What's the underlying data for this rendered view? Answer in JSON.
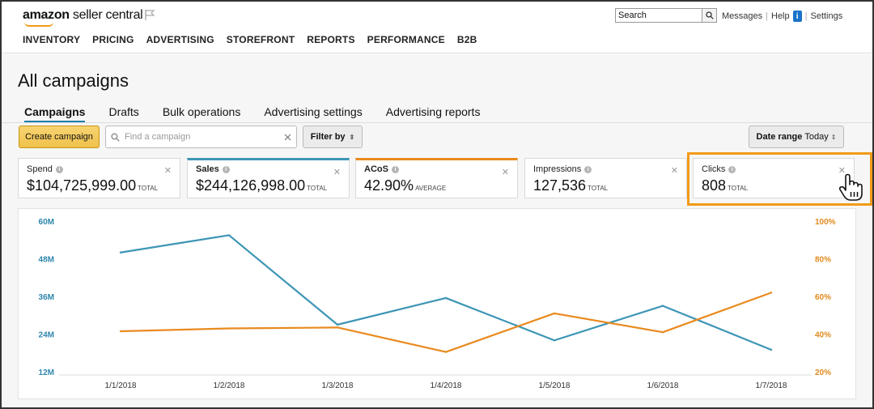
{
  "header": {
    "logo_bold": "amazon",
    "logo_light": " seller central",
    "search_value": "Search",
    "links": {
      "messages": "Messages",
      "help": "Help",
      "settings": "Settings"
    },
    "info_glyph": "i"
  },
  "nav": [
    "INVENTORY",
    "PRICING",
    "ADVERTISING",
    "STOREFRONT",
    "REPORTS",
    "PERFORMANCE",
    "B2B"
  ],
  "page": {
    "title": "All campaigns",
    "tabs": [
      "Campaigns",
      "Drafts",
      "Bulk operations",
      "Advertising settings",
      "Advertising reports"
    ],
    "active_tab": "Campaigns"
  },
  "toolbar": {
    "create_label": "Create campaign",
    "find_placeholder": "Find a campaign",
    "filter_label": "Filter by",
    "date_label": "Date range",
    "date_value": "Today"
  },
  "metrics": [
    {
      "name": "Spend",
      "value": "$104,725,999.00",
      "unit": "TOTAL",
      "accent": ""
    },
    {
      "name": "Sales",
      "value": "$244,126,998.00",
      "unit": "TOTAL",
      "accent": "#3d95b5"
    },
    {
      "name": "ACoS",
      "value": "42.90%",
      "unit": "AVERAGE",
      "accent": "#e98a1f"
    },
    {
      "name": "Impressions",
      "value": "127,536",
      "unit": "TOTAL",
      "accent": ""
    },
    {
      "name": "Clicks",
      "value": "808",
      "unit": "TOTAL",
      "accent": ""
    }
  ],
  "chart_data": {
    "type": "line",
    "x": [
      "1/1/2018",
      "1/2/2018",
      "1/3/2018",
      "1/4/2018",
      "1/5/2018",
      "1/6/2018",
      "1/7/2018"
    ],
    "series": [
      {
        "name": "Sales",
        "axis": "left",
        "color": "#3d95b5",
        "values": [
          50,
          55.5,
          27,
          35.5,
          22,
          33,
          19
        ]
      },
      {
        "name": "ACoS",
        "axis": "right",
        "color": "#e98a1f",
        "values": [
          41.5,
          43,
          43.5,
          30.5,
          51,
          41,
          62
        ]
      }
    ],
    "y_left": {
      "ticks": [
        "12M",
        "24M",
        "36M",
        "48M",
        "60M"
      ],
      "values": [
        12,
        24,
        36,
        48,
        60
      ],
      "range": [
        12,
        60
      ]
    },
    "y_right": {
      "ticks": [
        "20%",
        "40%",
        "60%",
        "80%",
        "100%"
      ],
      "values": [
        20,
        40,
        60,
        80,
        100
      ],
      "range": [
        20,
        100
      ]
    },
    "grid": false
  }
}
